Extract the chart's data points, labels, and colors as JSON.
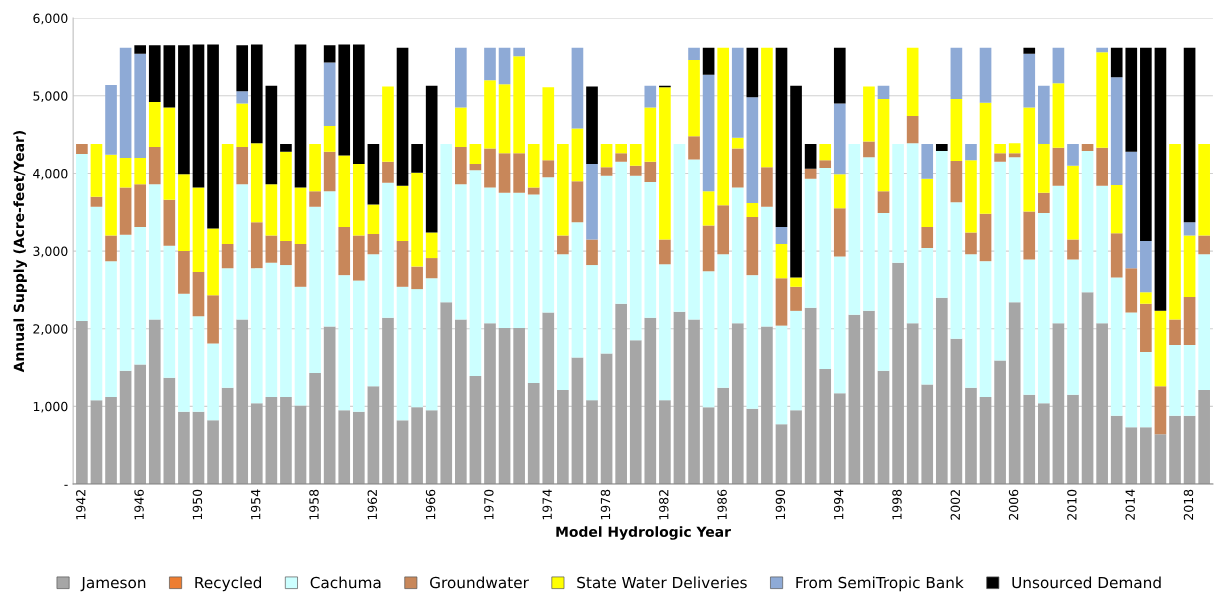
{
  "chart_data": {
    "type": "bar",
    "stacked": true,
    "xlabel": "Model Hydrologic Year",
    "ylabel": "Annual Supply (Acre-feet/Year)",
    "categories": [
      "1942",
      null,
      null,
      null,
      "1946",
      null,
      null,
      null,
      "1950",
      null,
      null,
      null,
      "1954",
      null,
      null,
      null,
      "1958",
      null,
      null,
      null,
      "1962",
      null,
      null,
      null,
      "1966",
      null,
      null,
      null,
      "1970",
      null,
      null,
      null,
      "1974",
      null,
      null,
      null,
      "1978",
      null,
      null,
      null,
      "1982",
      null,
      null,
      null,
      "1986",
      null,
      null,
      null,
      "1990",
      null,
      null,
      null,
      "1994",
      null,
      null,
      null,
      "1998",
      null,
      null,
      null,
      "2002",
      null,
      null,
      null,
      "2006",
      null,
      null,
      null,
      "2010",
      null,
      null,
      null,
      "2014",
      null,
      null,
      null,
      "2018",
      null
    ],
    "ylim": [
      0,
      6000
    ],
    "yticks": [
      {
        "value": 0,
        "label": "-"
      },
      {
        "value": 1000,
        "label": "1,000"
      },
      {
        "value": 2000,
        "label": "2,000"
      },
      {
        "value": 3000,
        "label": "3,000"
      },
      {
        "value": 4000,
        "label": "4,000"
      },
      {
        "value": 5000,
        "label": "5,000"
      },
      {
        "value": 6000,
        "label": "6,000"
      }
    ],
    "grid": "y",
    "legend": "bottom",
    "series": [
      {
        "name": "Jameson",
        "color": "#a6a6a6",
        "values": [
          2100,
          1080,
          1120,
          1460,
          1540,
          2120,
          1370,
          930,
          930,
          820,
          1240,
          2120,
          1040,
          1120,
          1120,
          1010,
          1430,
          2030,
          950,
          930,
          1260,
          2140,
          820,
          990,
          950,
          2340,
          2120,
          1390,
          2070,
          2010,
          2010,
          1300,
          2210,
          1210,
          1630,
          1080,
          1680,
          2320,
          1850,
          2140,
          1080,
          2220,
          2120,
          990,
          1240,
          2070,
          970,
          2030,
          770,
          950,
          2270,
          1480,
          1170,
          2180,
          2230,
          1460,
          2850,
          2070,
          1280,
          2400,
          1870,
          1240,
          1120,
          1590,
          2340,
          1150,
          1040,
          2070,
          1150,
          2470,
          2070,
          880,
          730,
          730,
          640,
          880,
          880,
          1210
        ]
      },
      {
        "name": "Recycled",
        "color": "#ed7d31",
        "values": [
          0,
          0,
          0,
          0,
          0,
          0,
          0,
          0,
          0,
          0,
          0,
          0,
          0,
          0,
          0,
          0,
          0,
          0,
          0,
          0,
          0,
          0,
          0,
          0,
          0,
          0,
          0,
          0,
          0,
          0,
          0,
          0,
          0,
          0,
          0,
          0,
          0,
          0,
          0,
          0,
          0,
          0,
          0,
          0,
          0,
          0,
          0,
          0,
          0,
          0,
          0,
          0,
          0,
          0,
          0,
          0,
          0,
          0,
          0,
          0,
          0,
          0,
          0,
          0,
          0,
          0,
          0,
          0,
          0,
          0,
          0,
          0,
          0,
          0,
          0,
          0,
          0,
          0
        ]
      },
      {
        "name": "Cachuma",
        "color": "#ccffff",
        "values": [
          2150,
          2490,
          1750,
          1750,
          1770,
          1740,
          1700,
          1520,
          1230,
          990,
          1540,
          1740,
          1740,
          1730,
          1700,
          1530,
          2140,
          1740,
          1740,
          1690,
          1700,
          1740,
          1720,
          1520,
          1700,
          2040,
          1740,
          2650,
          1750,
          1740,
          1740,
          2430,
          1740,
          1750,
          1740,
          1740,
          2290,
          1830,
          2120,
          1750,
          1750,
          2160,
          2060,
          1750,
          1720,
          1750,
          1720,
          1540,
          1270,
          1280,
          1660,
          2590,
          1760,
          2200,
          1980,
          2030,
          1530,
          2320,
          1760,
          1890,
          1760,
          1720,
          1750,
          2560,
          1870,
          1740,
          2450,
          1770,
          1740,
          1820,
          1770,
          1780,
          1480,
          970,
          0,
          910,
          910,
          1750
        ]
      },
      {
        "name": "Groundwater",
        "color": "#c8875a",
        "values": [
          130,
          130,
          330,
          610,
          550,
          480,
          590,
          550,
          570,
          620,
          310,
          480,
          590,
          350,
          310,
          550,
          200,
          510,
          620,
          580,
          260,
          270,
          590,
          290,
          260,
          0,
          480,
          80,
          500,
          510,
          510,
          90,
          220,
          240,
          530,
          330,
          110,
          110,
          130,
          260,
          320,
          0,
          300,
          590,
          630,
          500,
          750,
          510,
          610,
          310,
          130,
          100,
          620,
          0,
          200,
          280,
          0,
          350,
          270,
          0,
          530,
          280,
          610,
          110,
          50,
          620,
          260,
          490,
          260,
          90,
          490,
          570,
          570,
          620,
          620,
          330,
          620,
          240
        ]
      },
      {
        "name": "State Water Deliveries",
        "color": "#ffff00",
        "values": [
          0,
          680,
          1040,
          380,
          340,
          580,
          1190,
          990,
          1090,
          860,
          1290,
          560,
          1020,
          660,
          1150,
          730,
          610,
          330,
          920,
          920,
          380,
          970,
          710,
          1210,
          330,
          0,
          510,
          260,
          880,
          890,
          1250,
          560,
          940,
          1180,
          680,
          0,
          300,
          120,
          280,
          700,
          1960,
          0,
          980,
          440,
          2030,
          140,
          180,
          1540,
          440,
          120,
          0,
          210,
          440,
          0,
          710,
          1190,
          0,
          880,
          620,
          0,
          800,
          930,
          1430,
          120,
          130,
          1340,
          630,
          830,
          950,
          0,
          1230,
          620,
          0,
          150,
          970,
          2260,
          790,
          1180
        ]
      },
      {
        "name": "From SemiTropic Bank",
        "color": "#8eaad6",
        "values": [
          0,
          0,
          900,
          1420,
          1340,
          0,
          0,
          0,
          0,
          0,
          0,
          160,
          0,
          0,
          0,
          0,
          0,
          820,
          0,
          0,
          0,
          0,
          0,
          0,
          0,
          0,
          770,
          0,
          420,
          470,
          110,
          0,
          0,
          0,
          1040,
          970,
          0,
          0,
          0,
          280,
          0,
          0,
          160,
          1500,
          0,
          1160,
          1360,
          0,
          220,
          0,
          0,
          0,
          910,
          0,
          0,
          170,
          0,
          0,
          450,
          0,
          660,
          210,
          710,
          0,
          0,
          690,
          750,
          460,
          280,
          0,
          60,
          1390,
          1500,
          660,
          0,
          0,
          170,
          0
        ]
      },
      {
        "name": "Unsourced Demand",
        "color": "#000000",
        "values": [
          0,
          0,
          0,
          0,
          110,
          730,
          800,
          1660,
          1840,
          2370,
          0,
          590,
          1270,
          1270,
          100,
          1840,
          0,
          220,
          1430,
          1540,
          780,
          0,
          1780,
          370,
          1890,
          0,
          0,
          0,
          0,
          0,
          0,
          0,
          0,
          0,
          0,
          1000,
          0,
          0,
          0,
          0,
          20,
          0,
          0,
          350,
          0,
          0,
          640,
          0,
          2310,
          2470,
          320,
          0,
          720,
          0,
          0,
          0,
          0,
          0,
          0,
          90,
          0,
          0,
          0,
          0,
          0,
          80,
          0,
          0,
          0,
          0,
          0,
          380,
          1340,
          2490,
          3390,
          0,
          2250,
          0
        ]
      }
    ]
  }
}
